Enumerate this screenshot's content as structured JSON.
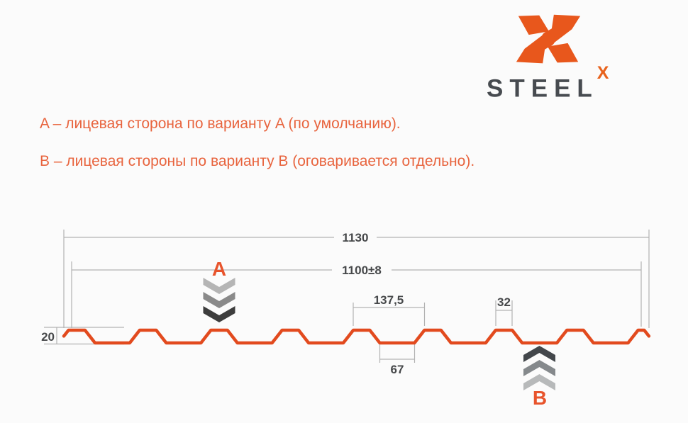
{
  "background": "#FBFBFB",
  "logo": {
    "brand": "STEEL",
    "sup": "X",
    "mark_color": "#E8571C",
    "brand_color": "#474B50",
    "sup_color": "#E8621C"
  },
  "notes": {
    "color": "#E8643E",
    "line_a": "A – лицевая сторона по варианту A (по умолчанию).",
    "line_b": "B – лицевая стороны по варианту B (оговаривается отдельно)."
  },
  "diagram": {
    "type": "corrugated-sheet-profile-cross-section",
    "profile_color": "#E24A1E",
    "dim_line_color": "#B2B2B2",
    "dim_text_color": "#46484A",
    "accent_color": "#E8542C",
    "labels": {
      "overall_width": "1130",
      "working_width": "1100±8",
      "rib_pitch": "137,5",
      "rib_top_width": "32",
      "profile_height": "20",
      "valley_width": "67",
      "side_a": "A",
      "side_b": "B"
    },
    "geometry_mm": {
      "total_width": 1130,
      "working_width": 1100,
      "rib_pitch": 137.5,
      "rib_top_width": 32,
      "valley_width": 67,
      "slope_run": 19.25,
      "profile_height": 20,
      "edge_stub_run": 9,
      "full_ribs": 8
    },
    "side_a_chevron_colors": [
      "#B5B5B5",
      "#8A8A8A",
      "#3D3D3D"
    ],
    "side_b_chevron_colors": [
      "#43474B",
      "#85898C",
      "#B7B9BA"
    ]
  }
}
